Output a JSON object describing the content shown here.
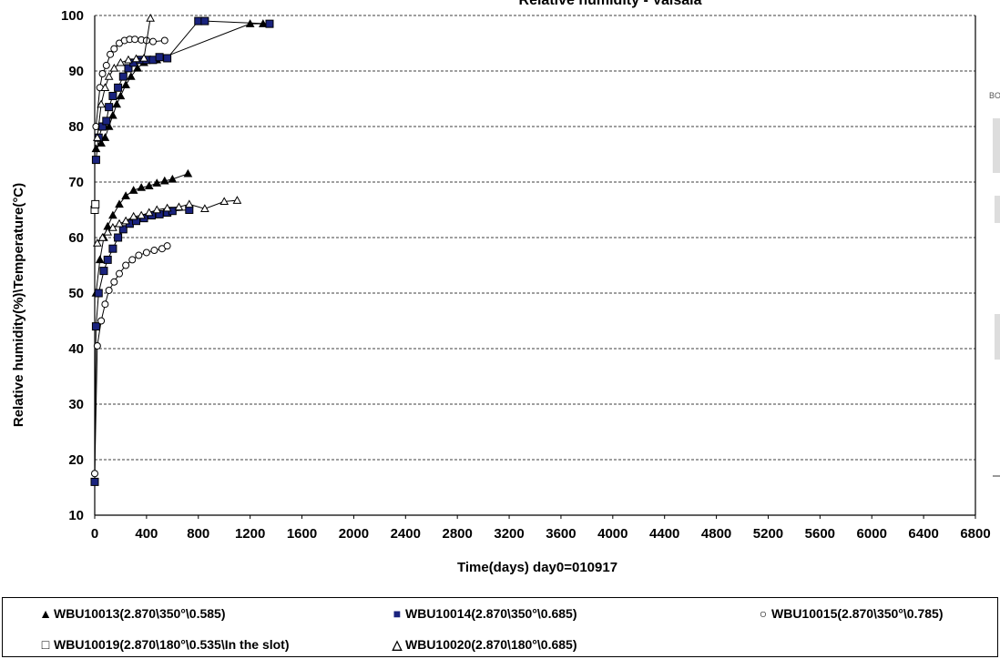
{
  "chart_data": {
    "type": "scatter",
    "title": "Relative humidity - Vaisala",
    "xlabel": "Time(days) day0=010917",
    "ylabel": "Relative humidity(%)\\Temperature(°C)",
    "xlim": [
      0,
      6800
    ],
    "ylim": [
      10,
      100
    ],
    "x_ticks": [
      "0",
      "400",
      "800",
      "1200",
      "1600",
      "2000",
      "2400",
      "2800",
      "3200",
      "3600",
      "4000",
      "4400",
      "4800",
      "5200",
      "5600",
      "6000",
      "6400",
      "6800"
    ],
    "y_ticks": [
      "10",
      "20",
      "30",
      "40",
      "50",
      "60",
      "70",
      "80",
      "90",
      "100"
    ],
    "grid": "horizontal dashed",
    "legend_position": "bottom",
    "series": [
      {
        "name": "WBU10013(2.870\\350°\\0.585)",
        "marker": "filled-triangle",
        "color": "#000000",
        "rh": [
          [
            10,
            76
          ],
          [
            50,
            77
          ],
          [
            80,
            78
          ],
          [
            110,
            80
          ],
          [
            140,
            82
          ],
          [
            170,
            84
          ],
          [
            200,
            85.5
          ],
          [
            240,
            87.5
          ],
          [
            280,
            89
          ],
          [
            330,
            90.5
          ],
          [
            380,
            91.5
          ],
          [
            430,
            92
          ],
          [
            480,
            92
          ],
          [
            1200,
            98.5
          ],
          [
            1300,
            98.5
          ]
        ],
        "temp": [
          [
            10,
            50
          ],
          [
            40,
            56
          ],
          [
            70,
            60
          ],
          [
            100,
            62
          ],
          [
            140,
            64
          ],
          [
            190,
            66
          ],
          [
            240,
            67.5
          ],
          [
            300,
            68.5
          ],
          [
            360,
            69
          ],
          [
            420,
            69.3
          ],
          [
            480,
            69.8
          ],
          [
            540,
            70.2
          ],
          [
            600,
            70.5
          ],
          [
            720,
            71.5
          ]
        ]
      },
      {
        "name": "WBU10014(2.870\\350°\\0.685)",
        "marker": "filled-square",
        "color": "#1a237e",
        "rh": [
          [
            10,
            74
          ],
          [
            30,
            78
          ],
          [
            60,
            80
          ],
          [
            90,
            81
          ],
          [
            110,
            83.5
          ],
          [
            140,
            85.5
          ],
          [
            180,
            87
          ],
          [
            220,
            89
          ],
          [
            260,
            90.5
          ],
          [
            300,
            91.5
          ],
          [
            350,
            92
          ],
          [
            400,
            92
          ],
          [
            450,
            92
          ],
          [
            500,
            92.5
          ],
          [
            560,
            92.3
          ],
          [
            800,
            99
          ],
          [
            850,
            99
          ],
          [
            1350,
            98.5
          ]
        ],
        "temp": [
          [
            0,
            16
          ],
          [
            10,
            44
          ],
          [
            30,
            50
          ],
          [
            70,
            54
          ],
          [
            100,
            56
          ],
          [
            140,
            58
          ],
          [
            180,
            60
          ],
          [
            220,
            61.5
          ],
          [
            270,
            62.5
          ],
          [
            320,
            63
          ],
          [
            380,
            63.5
          ],
          [
            440,
            64
          ],
          [
            500,
            64.2
          ],
          [
            560,
            64.5
          ],
          [
            600,
            64.8
          ],
          [
            730,
            65
          ]
        ]
      },
      {
        "name": "WBU10015(2.870\\350°\\0.785)",
        "marker": "open-circle",
        "color": "#000000",
        "rh": [
          [
            10,
            80
          ],
          [
            40,
            87
          ],
          [
            60,
            89.5
          ],
          [
            90,
            91
          ],
          [
            120,
            93
          ],
          [
            150,
            94
          ],
          [
            190,
            95
          ],
          [
            230,
            95.5
          ],
          [
            270,
            95.7
          ],
          [
            310,
            95.7
          ],
          [
            360,
            95.6
          ],
          [
            400,
            95.5
          ],
          [
            450,
            95.3
          ],
          [
            540,
            95.5
          ]
        ],
        "temp": [
          [
            0,
            17.5
          ],
          [
            20,
            40.5
          ],
          [
            50,
            45
          ],
          [
            80,
            48
          ],
          [
            110,
            50.5
          ],
          [
            150,
            52
          ],
          [
            190,
            53.5
          ],
          [
            240,
            55
          ],
          [
            290,
            56
          ],
          [
            340,
            56.8
          ],
          [
            400,
            57.3
          ],
          [
            460,
            57.7
          ],
          [
            520,
            58
          ],
          [
            560,
            58.5
          ]
        ]
      },
      {
        "name": "WBU10019(2.870\\180°\\0.535\\In the slot)",
        "marker": "open-square",
        "color": "#000000",
        "rh": [
          [
            0,
            65
          ],
          [
            5,
            66
          ]
        ],
        "temp": []
      },
      {
        "name": "WBU10020(2.870\\180°\\0.685)",
        "marker": "open-triangle",
        "color": "#000000",
        "rh": [
          [
            20,
            78
          ],
          [
            50,
            84
          ],
          [
            80,
            87
          ],
          [
            110,
            89
          ],
          [
            150,
            90.5
          ],
          [
            200,
            91.5
          ],
          [
            260,
            92
          ],
          [
            320,
            92.2
          ],
          [
            380,
            92.3
          ],
          [
            430,
            99.5
          ]
        ],
        "temp": [
          [
            20,
            59
          ],
          [
            60,
            60
          ],
          [
            100,
            61
          ],
          [
            140,
            61.8
          ],
          [
            190,
            62.5
          ],
          [
            240,
            63
          ],
          [
            300,
            63.8
          ],
          [
            360,
            64
          ],
          [
            420,
            64.5
          ],
          [
            480,
            65
          ],
          [
            560,
            65.3
          ],
          [
            650,
            65.5
          ],
          [
            730,
            66
          ],
          [
            850,
            65.2
          ],
          [
            1000,
            66.5
          ],
          [
            1100,
            66.7
          ]
        ]
      }
    ]
  },
  "legend": {
    "items": [
      {
        "marker": "▲",
        "label": "WBU10013(2.870\\350°\\0.585)",
        "color": "#000000"
      },
      {
        "marker": "■",
        "label": "WBU10014(2.870\\350°\\0.685)",
        "color": "#1a237e"
      },
      {
        "marker": "○",
        "label": "WBU10015(2.870\\350°\\0.785)",
        "color": "#000000"
      },
      {
        "marker": "□",
        "label": "WBU10019(2.870\\180°\\0.535\\In the slot)",
        "color": "#000000"
      },
      {
        "marker": "△",
        "label": "WBU10020(2.870\\180°\\0.685)",
        "color": "#000000"
      }
    ]
  },
  "right_edge_fragment": "BO"
}
